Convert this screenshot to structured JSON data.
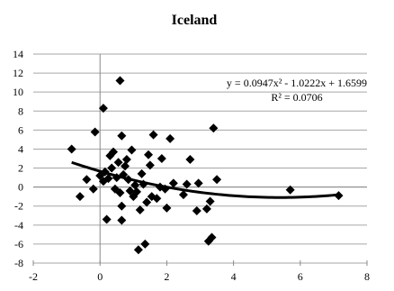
{
  "chart_data": {
    "type": "scatter",
    "title": "Iceland",
    "xlabel": "",
    "ylabel": "",
    "xlim": [
      -2,
      8
    ],
    "ylim": [
      -8,
      14
    ],
    "x_ticks": [
      -2,
      0,
      2,
      4,
      6,
      8
    ],
    "y_ticks": [
      14,
      12,
      10,
      8,
      6,
      4,
      2,
      0,
      -2,
      -4,
      -6,
      -8
    ],
    "x_tick_labels": [
      "-2",
      "0",
      "2",
      "4",
      "6",
      "8"
    ],
    "y_tick_labels": [
      "14",
      "12",
      "10",
      "8",
      "6",
      "4",
      "2",
      "0",
      "-2",
      "-4",
      "-6",
      "-8"
    ],
    "grid": "horizontal",
    "marker": "diamond",
    "marker_color": "#000000",
    "series": [
      {
        "points": [
          [
            -0.85,
            4.0
          ],
          [
            -0.6,
            -1.0
          ],
          [
            -0.4,
            0.8
          ],
          [
            -0.2,
            -0.2
          ],
          [
            -0.15,
            5.8
          ],
          [
            0.0,
            1.2
          ],
          [
            0.1,
            8.3
          ],
          [
            0.1,
            0.6
          ],
          [
            0.15,
            1.6
          ],
          [
            0.2,
            -3.4
          ],
          [
            0.25,
            0.9
          ],
          [
            0.3,
            3.3
          ],
          [
            0.35,
            2.0
          ],
          [
            0.4,
            3.7
          ],
          [
            0.45,
            -0.2
          ],
          [
            0.5,
            1.0
          ],
          [
            0.55,
            2.6
          ],
          [
            0.6,
            11.2
          ],
          [
            0.6,
            -0.6
          ],
          [
            0.65,
            5.4
          ],
          [
            0.65,
            -2.0
          ],
          [
            0.65,
            -3.5
          ],
          [
            0.7,
            1.3
          ],
          [
            0.75,
            2.2
          ],
          [
            0.8,
            2.9
          ],
          [
            0.85,
            0.8
          ],
          [
            0.9,
            -0.4
          ],
          [
            0.95,
            3.9
          ],
          [
            1.0,
            -1.0
          ],
          [
            1.05,
            0.2
          ],
          [
            1.1,
            -0.5
          ],
          [
            1.15,
            -6.6
          ],
          [
            1.2,
            -2.4
          ],
          [
            1.25,
            1.4
          ],
          [
            1.3,
            0.3
          ],
          [
            1.35,
            -6.0
          ],
          [
            1.4,
            -1.6
          ],
          [
            1.45,
            3.4
          ],
          [
            1.5,
            2.3
          ],
          [
            1.55,
            -1.0
          ],
          [
            1.6,
            5.5
          ],
          [
            1.7,
            -1.2
          ],
          [
            1.8,
            0.0
          ],
          [
            1.85,
            3.0
          ],
          [
            1.95,
            -0.2
          ],
          [
            2.0,
            -2.2
          ],
          [
            2.1,
            5.1
          ],
          [
            2.2,
            0.4
          ],
          [
            2.5,
            -0.8
          ],
          [
            2.6,
            0.3
          ],
          [
            2.7,
            2.9
          ],
          [
            2.9,
            -2.5
          ],
          [
            2.95,
            0.4
          ],
          [
            3.2,
            -2.3
          ],
          [
            3.25,
            -5.7
          ],
          [
            3.3,
            -1.5
          ],
          [
            3.35,
            -5.3
          ],
          [
            3.4,
            6.2
          ],
          [
            3.5,
            0.8
          ],
          [
            5.7,
            -0.3
          ],
          [
            7.15,
            -0.9
          ]
        ]
      }
    ],
    "trendline": {
      "type": "polynomial",
      "order": 2,
      "coefficients": [
        0.0947,
        -1.0222,
        1.6599
      ],
      "x_range": [
        -0.85,
        7.15
      ],
      "equation_label": "y = 0.0947x² - 1.0222x + 1.6599",
      "r2_label": "R² = 0.0706"
    }
  }
}
